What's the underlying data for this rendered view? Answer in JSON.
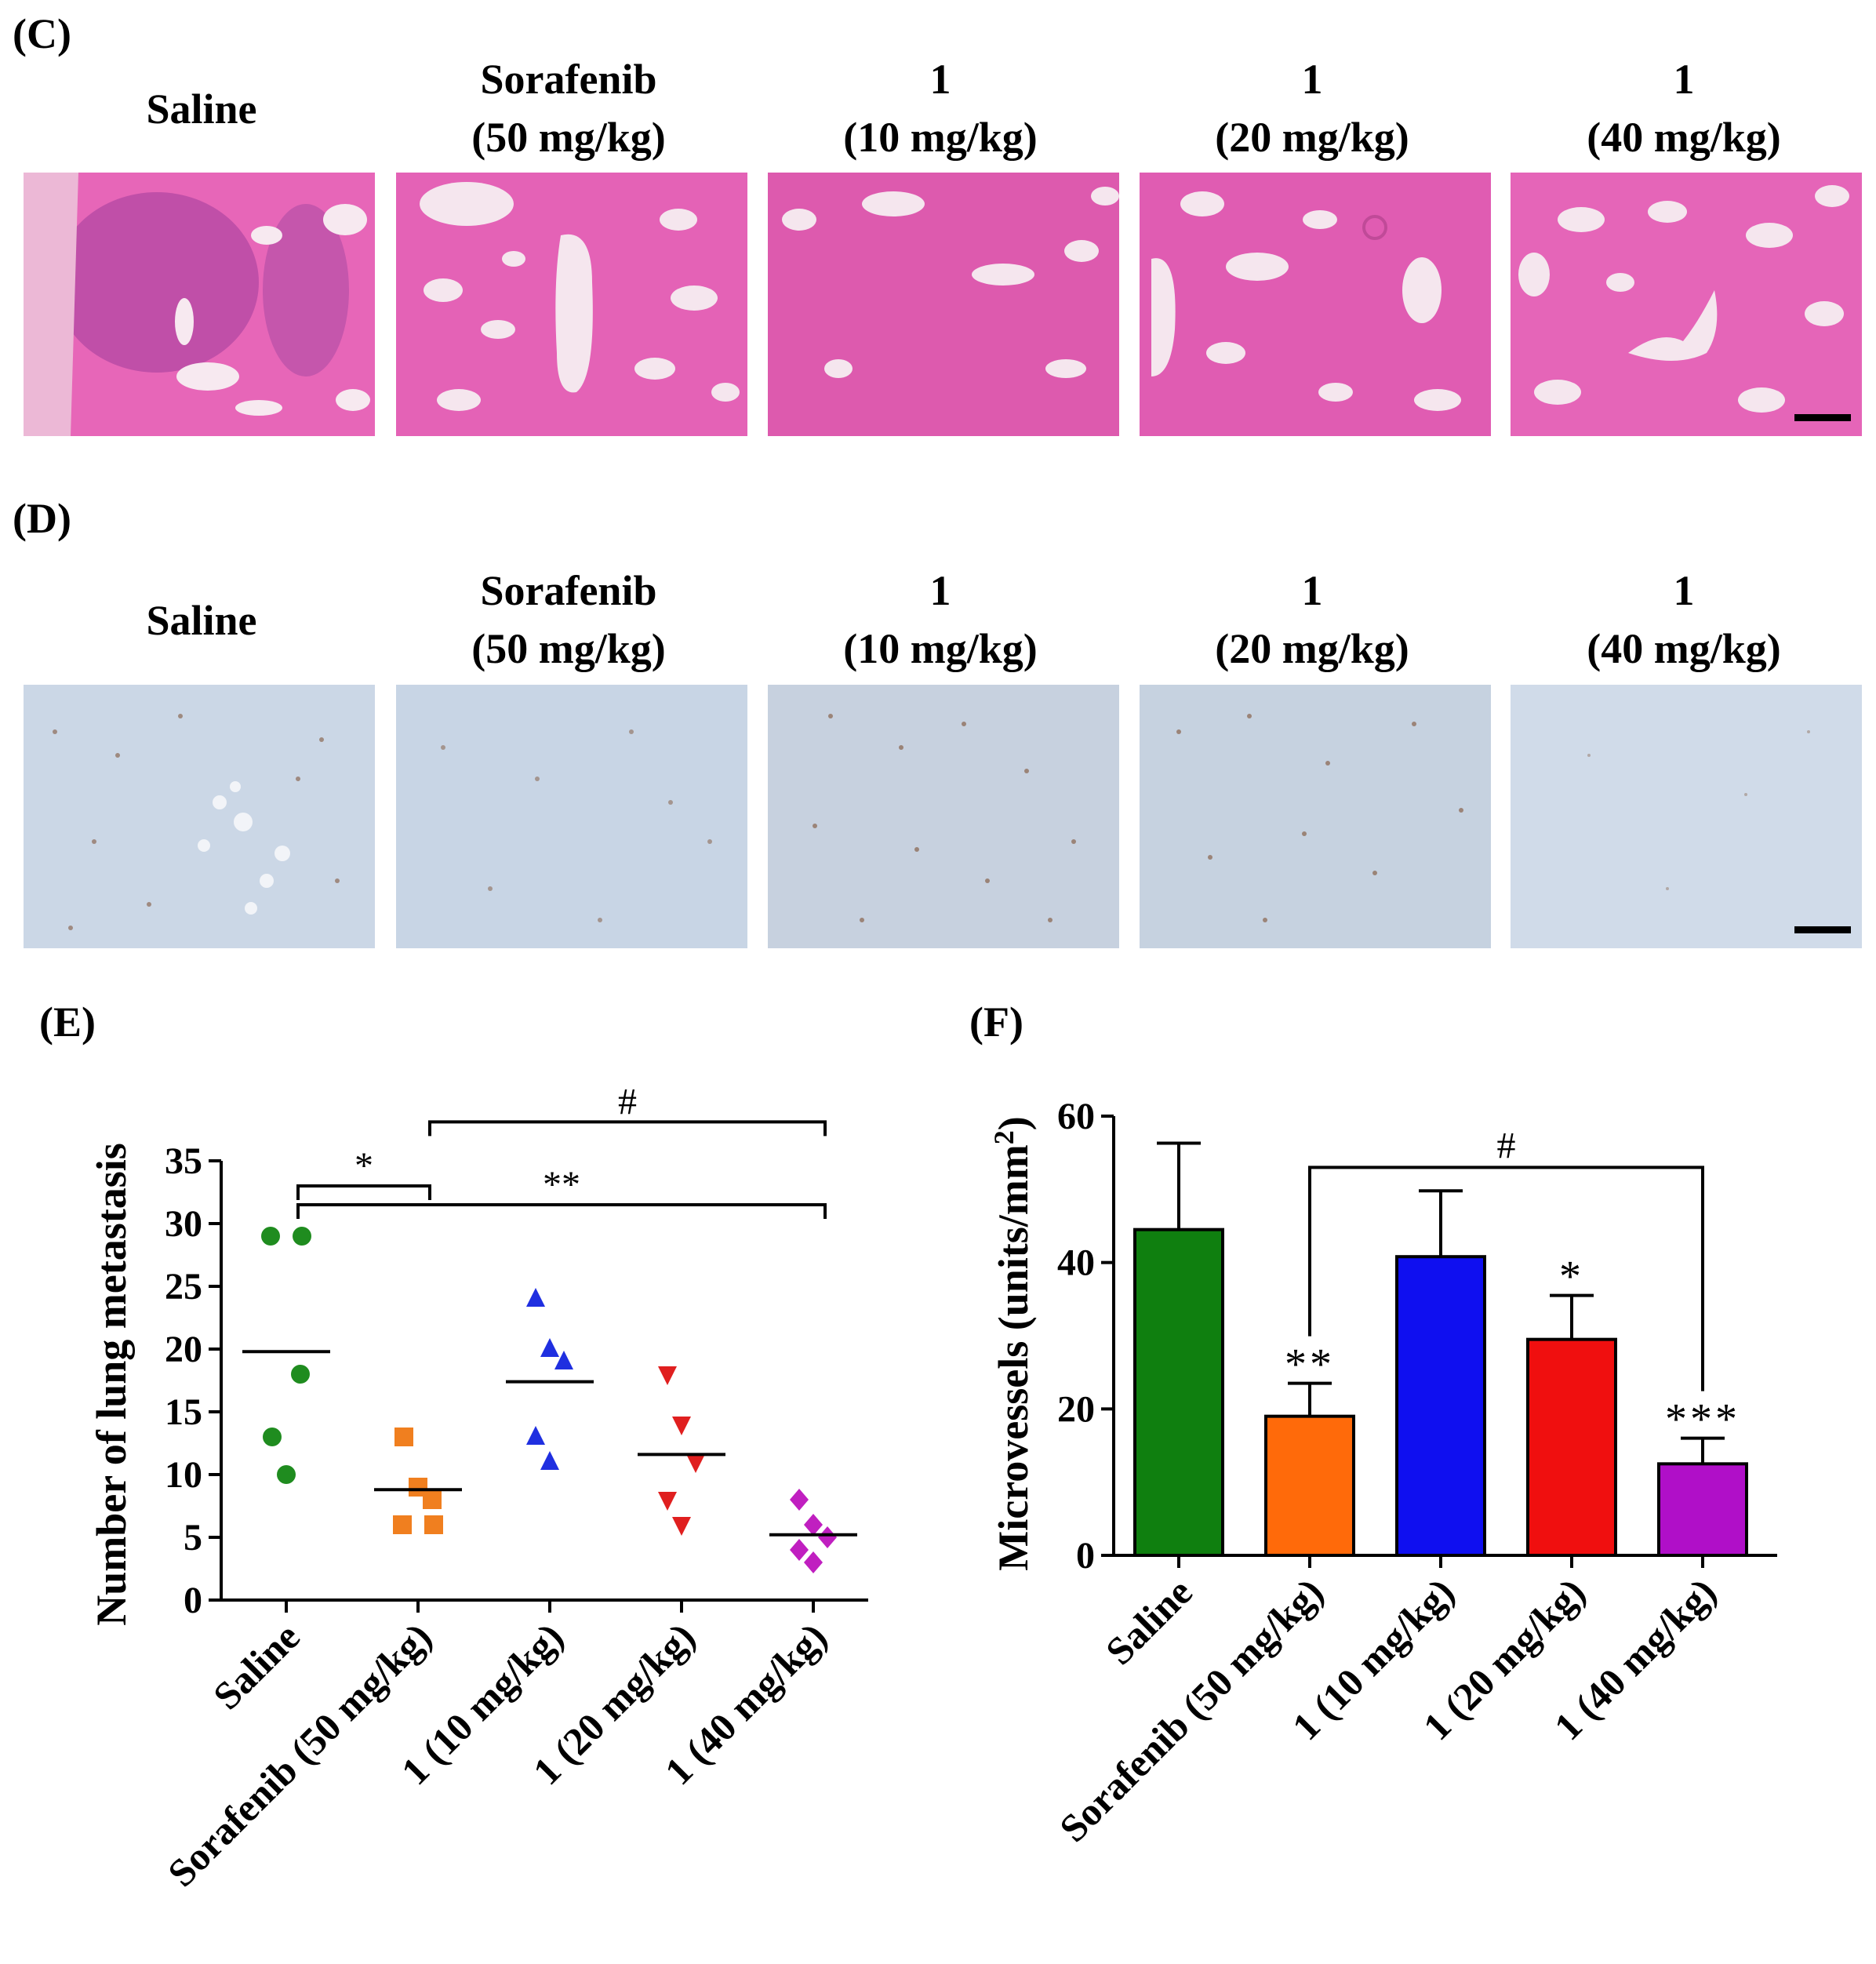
{
  "panels": {
    "c_label": "(C)",
    "d_label": "(D)",
    "e_label": "(E)",
    "f_label": "(F)"
  },
  "columns": [
    {
      "line1": "Saline",
      "line2": ""
    },
    {
      "line1": "Sorafenib",
      "line2": "(50 mg/kg)"
    },
    {
      "line1": "1",
      "line2": "(10 mg/kg)"
    },
    {
      "line1": "1",
      "line2": "(20 mg/kg)"
    },
    {
      "line1": "1",
      "line2": "(40 mg/kg)"
    }
  ],
  "colors": {
    "he_background": "#e35fb4",
    "he_airspace": "#f5e6ee",
    "ihc_background": "#c9d6e6",
    "ihc_stain": "#8c6a55"
  },
  "chart_data": [
    {
      "type": "scatter",
      "title": "",
      "xlabel": "",
      "ylabel": "Number of lung metastasis",
      "categories": [
        "Saline",
        "Sorafenib (50 mg/kg)",
        "1 (10 mg/kg)",
        "1 (20 mg/kg)",
        "1 (40 mg/kg)"
      ],
      "yticks": [
        "0",
        "5",
        "10",
        "15",
        "20",
        "25",
        "30",
        "35"
      ],
      "ylim": [
        0,
        35
      ],
      "grid": false,
      "series": [
        {
          "values": [
            29,
            29,
            18,
            13,
            10
          ],
          "mean": 19.8,
          "marker": "circle",
          "color": "#1f8c1f"
        },
        {
          "values": [
            13,
            9,
            8,
            6,
            6
          ],
          "mean": 8.8,
          "marker": "square",
          "color": "#f07f1f"
        },
        {
          "values": [
            24,
            20,
            19,
            13,
            11
          ],
          "mean": 17.4,
          "marker": "triangle-up",
          "color": "#1f2fe0"
        },
        {
          "values": [
            18,
            14,
            11,
            8,
            6
          ],
          "mean": 11.6,
          "marker": "triangle-down",
          "color": "#e01f1f"
        },
        {
          "values": [
            8,
            6,
            5,
            4,
            3
          ],
          "mean": 5.2,
          "marker": "diamond",
          "color": "#c01fc0"
        }
      ],
      "annotations": [
        {
          "from": 0,
          "to": 1,
          "label": "*"
        },
        {
          "from": 0,
          "to": 4,
          "label": "**"
        },
        {
          "from": 1,
          "to": 4,
          "label": "#"
        }
      ]
    },
    {
      "type": "bar",
      "title": "",
      "xlabel": "",
      "ylabel_main": "Microvessels (units/mm",
      "ylabel_sup": "2",
      "ylabel_end": ")",
      "categories": [
        "Saline",
        "Sorafenib (50 mg/kg)",
        "1 (10 mg/kg)",
        "1 (20 mg/kg)",
        "1 (40 mg/kg)"
      ],
      "values": [
        44.5,
        19,
        40.8,
        29.5,
        12.5
      ],
      "errors": [
        11.8,
        4.5,
        9,
        6,
        3.5
      ],
      "colors": [
        "#0f7f0f",
        "#ff6a0a",
        "#0f0ff0",
        "#f00f0f",
        "#b00fc8"
      ],
      "bar_labels": [
        "",
        "**",
        "",
        "*",
        "***"
      ],
      "yticks": [
        "0",
        "20",
        "40",
        "60"
      ],
      "ylim": [
        0,
        60
      ],
      "grid": false,
      "annotations": [
        {
          "from": 1,
          "to": 4,
          "label": "#"
        }
      ]
    }
  ]
}
